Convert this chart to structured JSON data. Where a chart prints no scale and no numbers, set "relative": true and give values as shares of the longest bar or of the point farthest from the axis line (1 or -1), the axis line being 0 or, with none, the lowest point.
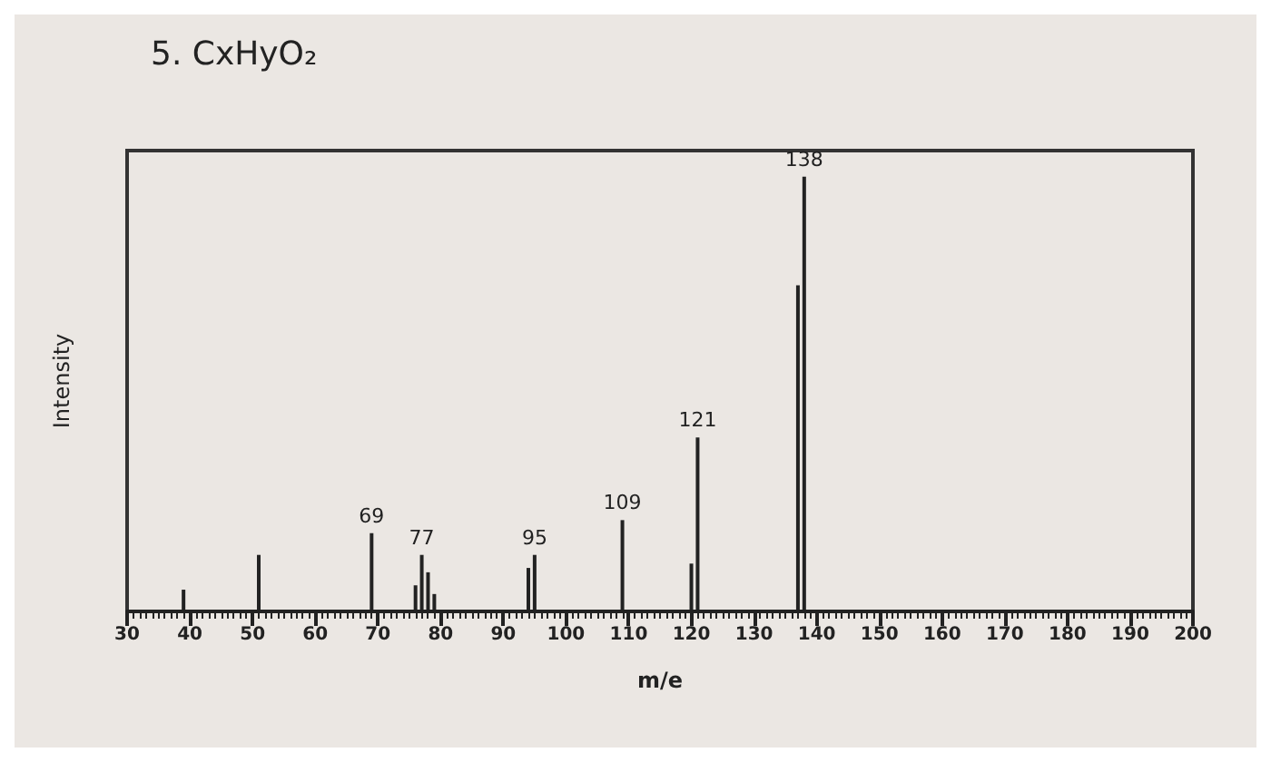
{
  "chart_data": {
    "type": "bar",
    "title": "5. CxHyO₂",
    "xlabel": "m/e",
    "ylabel": "Intensity",
    "relative": true,
    "color": "#222222",
    "x": [
      39,
      51,
      69,
      76,
      77,
      78,
      79,
      94,
      95,
      109,
      120,
      121,
      137,
      138
    ],
    "values": [
      0.05,
      0.13,
      0.18,
      0.06,
      0.13,
      0.09,
      0.04,
      0.1,
      0.13,
      0.21,
      0.11,
      0.4,
      0.75,
      1
    ],
    "xlim": [
      30,
      200
    ],
    "xticks": [
      30,
      40,
      50,
      60,
      70,
      80,
      90,
      100,
      110,
      120,
      130,
      140,
      150,
      160,
      170,
      180,
      190,
      200
    ],
    "annotations": [
      {
        "text": "69",
        "x": 69,
        "y": 0.18
      },
      {
        "text": "77",
        "x": 77,
        "y": 0.13
      },
      {
        "text": "95",
        "x": 95,
        "y": 0.13
      },
      {
        "text": "109",
        "x": 109,
        "y": 0.21
      },
      {
        "text": "121",
        "x": 121,
        "y": 0.4
      },
      {
        "text": "138",
        "x": 138,
        "y": 1
      }
    ]
  }
}
